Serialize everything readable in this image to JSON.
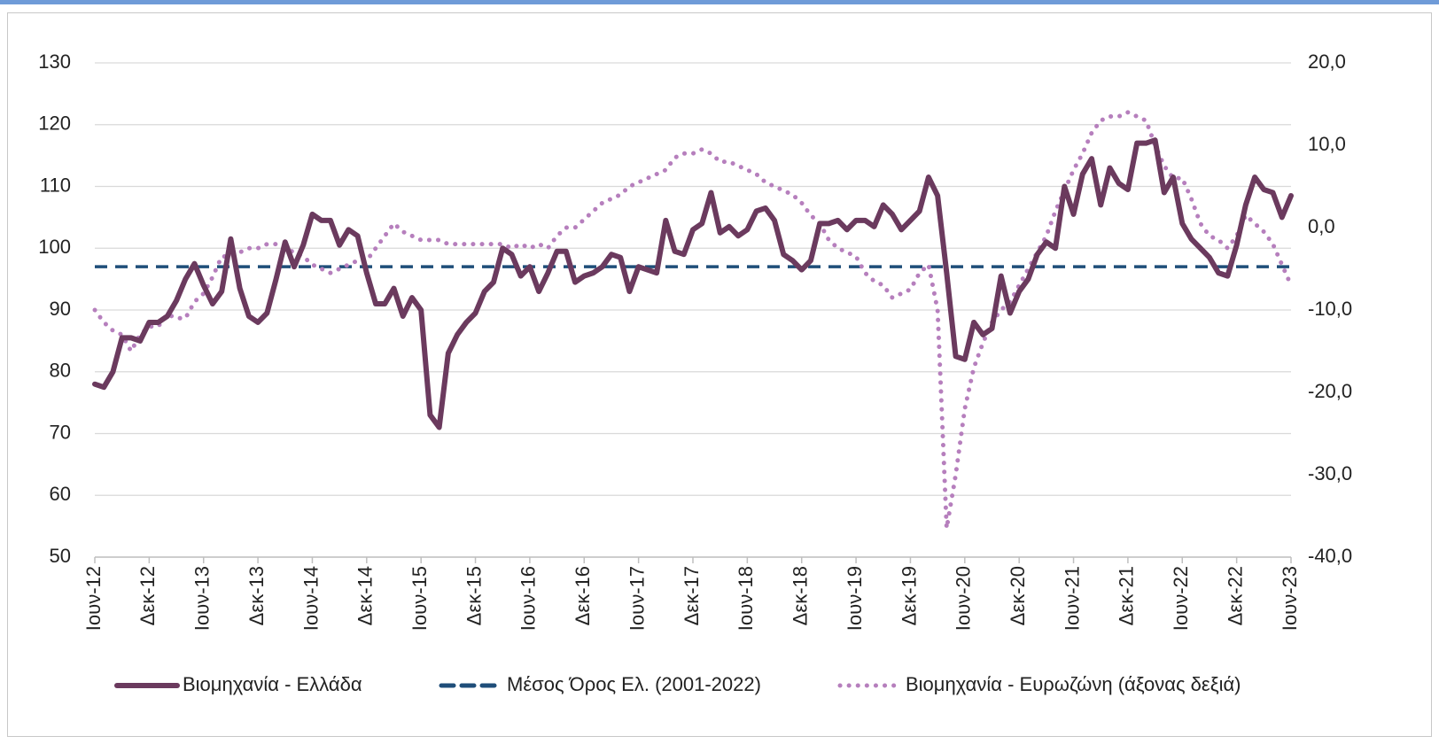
{
  "chart_data": {
    "type": "line",
    "categories": [
      "Ιουν-12",
      null,
      null,
      null,
      null,
      null,
      "Δεκ-12",
      null,
      null,
      null,
      null,
      null,
      "Ιουν-13",
      null,
      null,
      null,
      null,
      null,
      "Δεκ-13",
      null,
      null,
      null,
      null,
      null,
      "Ιουν-14",
      null,
      null,
      null,
      null,
      null,
      "Δεκ-14",
      null,
      null,
      null,
      null,
      null,
      "Ιουν-15",
      null,
      null,
      null,
      null,
      null,
      "Δεκ-15",
      null,
      null,
      null,
      null,
      null,
      "Ιουν-16",
      null,
      null,
      null,
      null,
      null,
      "Δεκ-16",
      null,
      null,
      null,
      null,
      null,
      "Ιουν-17",
      null,
      null,
      null,
      null,
      null,
      "Δεκ-17",
      null,
      null,
      null,
      null,
      null,
      "Ιουν-18",
      null,
      null,
      null,
      null,
      null,
      "Δεκ-18",
      null,
      null,
      null,
      null,
      null,
      "Ιουν-19",
      null,
      null,
      null,
      null,
      null,
      "Δεκ-19",
      null,
      null,
      null,
      null,
      null,
      "Ιουν-20",
      null,
      null,
      null,
      null,
      null,
      "Δεκ-20",
      null,
      null,
      null,
      null,
      null,
      "Ιουν-21",
      null,
      null,
      null,
      null,
      null,
      "Δεκ-21",
      null,
      null,
      null,
      null,
      null,
      "Ιουν-22",
      null,
      null,
      null,
      null,
      null,
      "Δεκ-22",
      null,
      null,
      null,
      null,
      null,
      "Ιουν-23"
    ],
    "series": [
      {
        "name": "Βιομηχανία  - Ελλάδα",
        "color": "#6b3a5e",
        "style": "solid",
        "axis": "y",
        "values": [
          78,
          77.5,
          80,
          85.5,
          85.5,
          85,
          88,
          88,
          89,
          91.5,
          95,
          97.5,
          94,
          91,
          93,
          101.5,
          93.5,
          89,
          88,
          89.5,
          95,
          101,
          97,
          100.5,
          105.5,
          104.5,
          104.5,
          100.5,
          103,
          102,
          96,
          91,
          91,
          93.5,
          89,
          92,
          90,
          73,
          71,
          83,
          86,
          88,
          89.5,
          93,
          94.5,
          100,
          99,
          95.5,
          97,
          93,
          96,
          99.5,
          99.5,
          94.5,
          95.5,
          96,
          97,
          99,
          98.5,
          93,
          97,
          96.5,
          96,
          104.5,
          99.5,
          99,
          103,
          104,
          109,
          102.5,
          103.5,
          102,
          103,
          106,
          106.5,
          104.5,
          99,
          98,
          96.5,
          98,
          104,
          104,
          104.5,
          103,
          104.5,
          104.5,
          103.5,
          107,
          105.5,
          103,
          104.5,
          106,
          111.5,
          108.5,
          96,
          82.5,
          82,
          88,
          86,
          87,
          95.5,
          89.5,
          93,
          95,
          99,
          101,
          100,
          110,
          105.5,
          112,
          114.5,
          107,
          113,
          110.5,
          109.5,
          117,
          117,
          117.5,
          109,
          111.5,
          104,
          101.5,
          100,
          98.5,
          96,
          95.5,
          100.5,
          107,
          111.5,
          109.5,
          109,
          105,
          108.5
        ]
      },
      {
        "name": "Βιομηχανία - Ευρωζώνη (άξονας δεξιά)",
        "color": "#b67fbd",
        "style": "dotted",
        "axis": "y2",
        "values": [
          -10,
          -11.5,
          -12.5,
          -13,
          -15,
          -13,
          -12,
          -12,
          -10.5,
          -11,
          -11,
          -9,
          -8,
          -6,
          -3.5,
          -3.5,
          -3,
          -2.5,
          -2.5,
          -2,
          -2,
          -2.5,
          -3,
          -3.5,
          -4.5,
          -5,
          -5.5,
          -5,
          -4.5,
          -4,
          -4,
          -2.5,
          -1,
          0.5,
          -0.5,
          -1,
          -1.5,
          -1.5,
          -1.5,
          -2,
          -2,
          -2,
          -2,
          -2,
          -2,
          -2,
          -2.5,
          -2,
          -2.5,
          -2,
          -2.5,
          -1,
          0,
          0,
          1,
          2,
          3,
          3.5,
          4,
          5,
          5.5,
          6,
          6.5,
          7,
          8.5,
          9,
          9,
          9.5,
          9,
          8,
          8,
          7.5,
          7,
          6.5,
          5.5,
          5,
          4.5,
          4,
          3,
          1.5,
          0.5,
          -1.5,
          -2.5,
          -3,
          -3.5,
          -5.5,
          -6.5,
          -7,
          -8.5,
          -8,
          -7.5,
          -5.5,
          -4.5,
          -10,
          -36.5,
          -30,
          -22,
          -17,
          -14,
          -11.5,
          -10,
          -9,
          -7,
          -5,
          -3,
          -1,
          2,
          4.5,
          7,
          9,
          11.5,
          13,
          13.5,
          13.5,
          14,
          13.5,
          13,
          10,
          7.5,
          6,
          6,
          3.5,
          0.5,
          -1,
          -1.5,
          -2.5,
          -1,
          1.5,
          0.5,
          -0.5,
          -2,
          -4.5,
          -7
        ]
      }
    ],
    "reference_line": {
      "name": "Μέσος Όρος Ελ. (2001-2022)",
      "value": 97,
      "color": "#1f4e79",
      "style": "dashed",
      "axis": "y"
    },
    "ylim": [
      50,
      130
    ],
    "yticks": [
      50,
      60,
      70,
      80,
      90,
      100,
      110,
      120,
      130
    ],
    "y2lim": [
      -40,
      20
    ],
    "y2ticks": [
      {
        "value": -40,
        "label": "-40,0"
      },
      {
        "value": -30,
        "label": "-30,0"
      },
      {
        "value": -20,
        "label": "-20,0"
      },
      {
        "value": -10,
        "label": "-10,0"
      },
      {
        "value": 0,
        "label": "0,0"
      },
      {
        "value": 10,
        "label": "10,0"
      },
      {
        "value": 20,
        "label": "20,0"
      }
    ],
    "grid": true,
    "legend": "bottom"
  }
}
